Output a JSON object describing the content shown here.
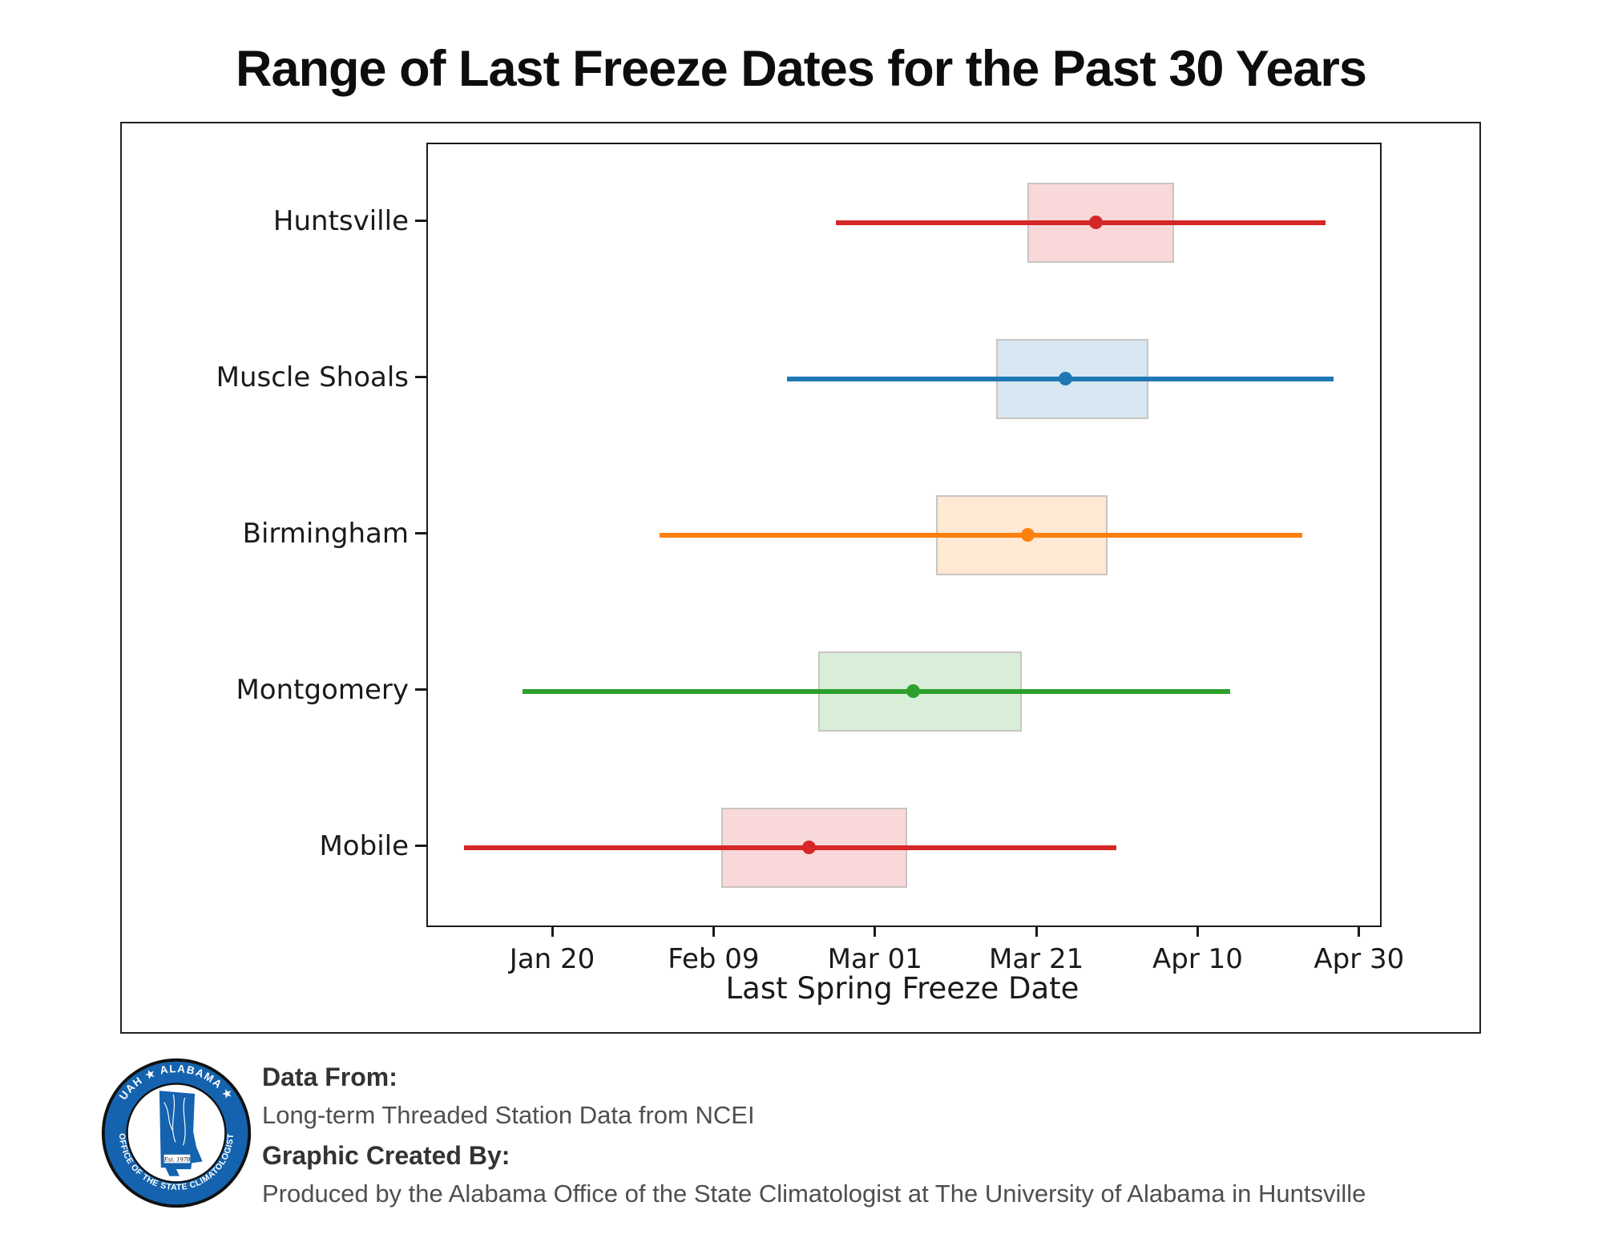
{
  "title": "Range of Last Freeze Dates for the Past 30 Years",
  "chart_data": {
    "type": "range_box_horizontal",
    "title": "Range of Last Freeze Dates for the Past 30 Years",
    "xlabel": "Last Spring Freeze Date",
    "grid": false,
    "legend": "none",
    "xlim_days": [
      4.4,
      122.4
    ],
    "x_ticks": [
      {
        "label": "Jan 20",
        "day": 20
      },
      {
        "label": "Feb 09",
        "day": 40
      },
      {
        "label": "Mar 01",
        "day": 60
      },
      {
        "label": "Mar 21",
        "day": 80
      },
      {
        "label": "Apr 10",
        "day": 100
      },
      {
        "label": "Apr 30",
        "day": 120
      }
    ],
    "categories": [
      "Huntsville",
      "Muscle Shoals",
      "Birmingham",
      "Montgomery",
      "Mobile"
    ],
    "series": [
      {
        "name": "Huntsville",
        "color": "#d62728",
        "min_day": 55.0,
        "q1_day": 78.7,
        "median_day": 87.2,
        "q3_day": 96.9,
        "max_day": 115.6,
        "min_date": "Feb 24",
        "q1_date": "Mar 19",
        "median_date": "Mar 28",
        "q3_date": "Apr 6",
        "max_date": "Apr 25"
      },
      {
        "name": "Muscle Shoals",
        "color": "#1f77b4",
        "min_day": 48.9,
        "q1_day": 74.8,
        "median_day": 83.4,
        "q3_day": 93.7,
        "max_day": 116.6,
        "min_date": "Feb 18",
        "q1_date": "Mar 16",
        "median_date": "Mar 24",
        "q3_date": "Apr 3",
        "max_date": "Apr 26"
      },
      {
        "name": "Birmingham",
        "color": "#ff7f0e",
        "min_day": 33.1,
        "q1_day": 67.4,
        "median_day": 78.7,
        "q3_day": 88.6,
        "max_day": 112.8,
        "min_date": "Feb 2",
        "q1_date": "Mar 8",
        "median_date": "Mar 19",
        "q3_date": "Mar 29",
        "max_date": "Apr 22"
      },
      {
        "name": "Montgomery",
        "color": "#2ca02c",
        "min_day": 16.1,
        "q1_day": 52.8,
        "median_day": 64.5,
        "q3_day": 78.0,
        "max_day": 103.8,
        "min_date": "Jan 16",
        "q1_date": "Feb 22",
        "median_date": "Mar 5",
        "q3_date": "Mar 19",
        "max_date": "Apr 13"
      },
      {
        "name": "Mobile",
        "color": "#d62728",
        "min_day": 8.9,
        "q1_day": 40.8,
        "median_day": 51.6,
        "q3_day": 63.8,
        "max_day": 89.7,
        "min_date": "Jan 9",
        "q1_date": "Feb 10",
        "median_date": "Feb 21",
        "q3_date": "Mar 5",
        "max_date": "Mar 30"
      }
    ]
  },
  "footer": {
    "data_from_label": "Data From:",
    "data_from_value": "Long-term Threaded Station Data from NCEI",
    "created_by_label": "Graphic Created By:",
    "created_by_value": "Produced by the Alabama Office of the State Climatologist at The University of Alabama in Huntsville",
    "logo": {
      "ring_text_top": "UAH ★ ALABAMA ★",
      "ring_text_bottom": "OFFICE OF THE STATE CLIMATOLOGIST",
      "est_text": "Est. 1978",
      "ring_color": "#1563ae"
    }
  }
}
